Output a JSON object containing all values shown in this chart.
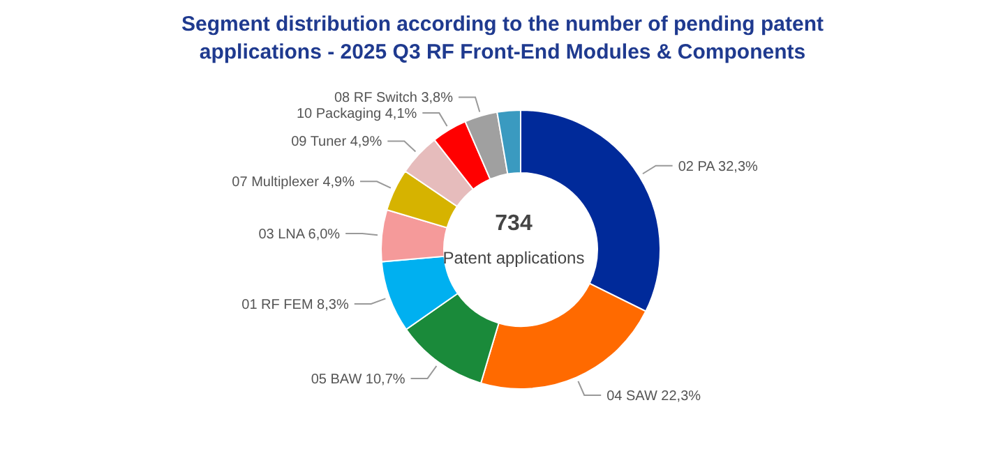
{
  "chart_data": {
    "type": "donut",
    "title": "Segment distribution according to the number of pending patent applications - 2025 Q3 RF Front-End Modules & Components",
    "categories": [
      "02 PA",
      "04 SAW",
      "05 BAW",
      "01 RF FEM",
      "03 LNA",
      "07 Multiplexer",
      "09 Tuner",
      "10 Packaging",
      "08 RF Switch",
      null
    ],
    "values": [
      32.3,
      22.3,
      10.7,
      8.3,
      6.0,
      4.9,
      4.9,
      4.1,
      3.8,
      2.7
    ],
    "value_labels": [
      "32,3%",
      "22,3%",
      "10,7%",
      "8,3%",
      "6,0%",
      "4,9%",
      "4,9%",
      "4,1%",
      "3,8%",
      null
    ],
    "colors": [
      "#002a9a",
      "#ff6a00",
      "#1a8a3a",
      "#00b0f0",
      "#f59a9a",
      "#d6b300",
      "#e6bcbc",
      "#ff0000",
      "#a0a0a0",
      "#3a9ac0"
    ],
    "annotations": [
      "734",
      "Patent applications"
    ],
    "legend": false
  }
}
